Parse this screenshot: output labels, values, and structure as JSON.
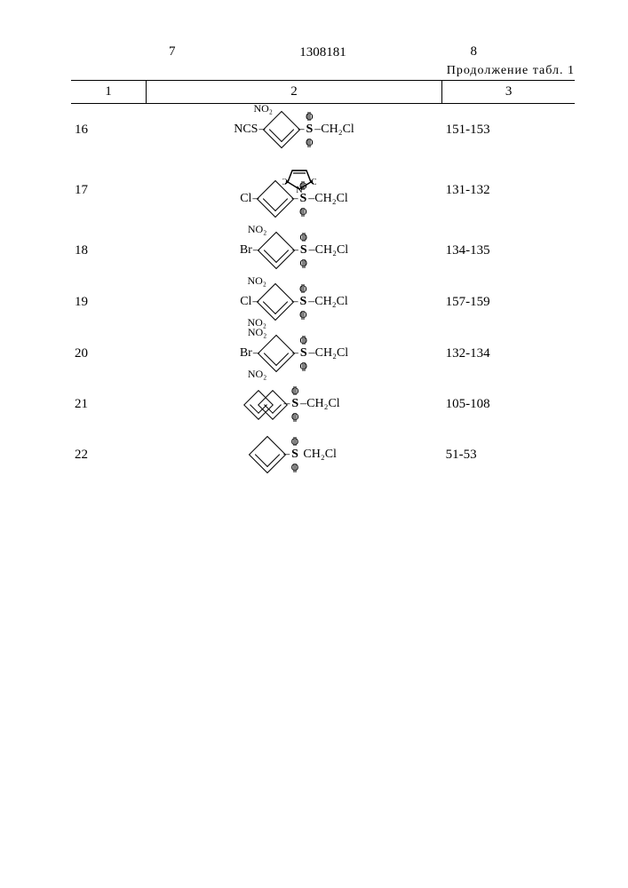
{
  "header": {
    "page_left": "7",
    "page_right": "8",
    "patent_number": "1308181",
    "continuation": "Продолжение табл. 1"
  },
  "columns": {
    "c1": "1",
    "c2": "2",
    "c3": "3"
  },
  "rows": [
    {
      "num": "16",
      "mp": "151-153",
      "chem": {
        "left_upper": "NO₂",
        "left_text": "NCS",
        "left_line": true,
        "naphthalene": false,
        "additional_lower": null,
        "additional_lower2": null,
        "maleimide": false
      }
    },
    {
      "num": "17",
      "mp": "131-132",
      "chem": {
        "left_upper": null,
        "left_text": "Cl",
        "left_line": true,
        "naphthalene": false,
        "additional_lower": null,
        "additional_lower2": null,
        "maleimide": true
      }
    },
    {
      "num": "18",
      "mp": "134-135",
      "chem": {
        "left_upper": "NO₂",
        "left_text": "Br",
        "left_line": true,
        "naphthalene": false,
        "additional_lower": null,
        "additional_lower2": null,
        "maleimide": false
      }
    },
    {
      "num": "19",
      "mp": "157-159",
      "chem": {
        "left_upper": "NO₂",
        "left_text": "Cl",
        "left_line": true,
        "naphthalene": false,
        "additional_lower": "NO₂",
        "additional_lower2": null,
        "maleimide": false
      }
    },
    {
      "num": "20",
      "mp": "132-134",
      "chem": {
        "left_upper": "NO₂",
        "left_text": "Br",
        "left_line": true,
        "naphthalene": false,
        "additional_lower": "NO₂",
        "additional_lower2": null,
        "maleimide": false
      }
    },
    {
      "num": "21",
      "mp": "105-108",
      "chem": {
        "left_upper": null,
        "left_text": null,
        "left_line": false,
        "naphthalene": true,
        "additional_lower": null,
        "additional_lower2": null,
        "maleimide": false
      }
    },
    {
      "num": "22",
      "mp": "51-53",
      "chem": {
        "left_upper": null,
        "left_text": null,
        "left_line": false,
        "naphthalene": false,
        "additional_lower": null,
        "additional_lower2": null,
        "maleimide": false,
        "plain_phenyl_only": true
      }
    }
  ],
  "common_right": "CH₂Cl"
}
